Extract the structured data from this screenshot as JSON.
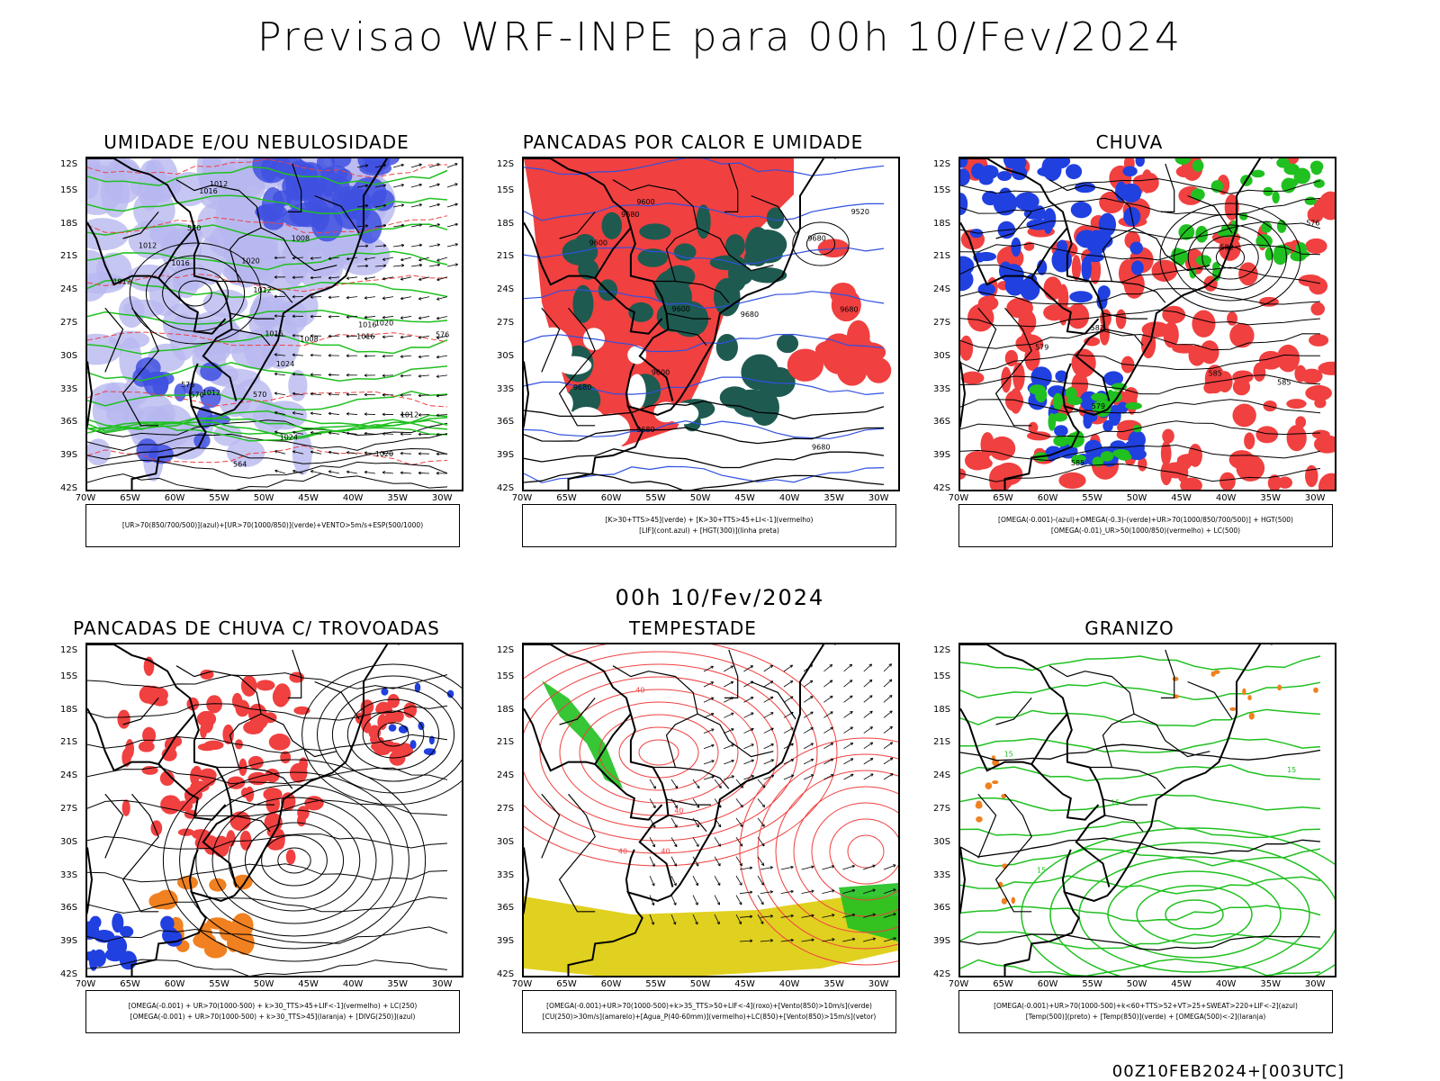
{
  "title": "Previsao WRF-INPE  para 00h 10/Fev/2024",
  "middle_label": "00h 10/Fev/2024",
  "footer": "00Z10FEB2024+[003UTC]",
  "lat_labels": [
    "12S",
    "15S",
    "18S",
    "21S",
    "24S",
    "27S",
    "30S",
    "33S",
    "36S",
    "39S",
    "42S"
  ],
  "lon_labels": [
    "70W",
    "65W",
    "60W",
    "55W",
    "50W",
    "45W",
    "40W",
    "35W",
    "30W"
  ],
  "colors": {
    "blue": "#2040e0",
    "lightblue": "#b8b8f0",
    "green": "#20c020",
    "red": "#f04040",
    "darkgreen": "#1e5a50",
    "orange": "#f08020",
    "yellow": "#e0d020",
    "black": "#000000"
  },
  "panels": [
    {
      "title": "UMIDADE E/OU NEBULOSIDADE",
      "legend": [
        "[UR>70(850/700/500)](azul)+[UR>70(1000/850)](verde)+VENTO>5m/s+ESP(500/1000)"
      ],
      "contour_labels": [
        "1016",
        "1012",
        "1012",
        "1016",
        "1012",
        "1008",
        "1012",
        "1008",
        "1012",
        "1016",
        "1012",
        "1016",
        "1020",
        "1020",
        "1024",
        "1024",
        "1020",
        "1016",
        "576",
        "570",
        "576",
        "570",
        "570",
        "564"
      ]
    },
    {
      "title": "PANCADAS POR CALOR E UMIDADE",
      "legend": [
        "[K>30+TTS>45](verde) + [K>30+TTS>45+LI<-1](vermelho)",
        "[LIF](cont.azul) + [HGT(300)](linha preta)"
      ],
      "contour_labels": [
        "9680",
        "9680",
        "9600",
        "9680",
        "9680",
        "9600",
        "9680",
        "9680",
        "9600",
        "9520",
        "9680",
        "9600"
      ]
    },
    {
      "title": "CHUVA",
      "legend": [
        "[OMEGA(-0.001)-(azul)+OMEGA(-0.3)-(verde)+UR>70(1000/850/700/500)] + HGT(500)",
        "[OMEGA(-0.01)_UR>50(1000/850)(vermelho) + LC(500)"
      ],
      "contour_labels": [
        "585",
        "585",
        "582",
        "579",
        "585",
        "582",
        "579",
        "576"
      ]
    },
    {
      "title": "PANCADAS DE CHUVA C/ TROVOADAS",
      "legend": [
        "[OMEGA(-0.001) + UR>70(1000-500) + k>30_TTS>45+LIF<-1](vermelho) + LC(250)",
        "[OMEGA(-0.001) + UR>70(1000-500) + k>30_TTS>45](laranja) + [DIVG(250)](azul)"
      ],
      "contour_labels": []
    },
    {
      "title": "TEMPESTADE",
      "legend": [
        "[OMEGA(-0.001)+UR>70(1000-500)+k>35_TTS>50+LIF<-4](roxo)+[Vento(850)>10m/s](verde)",
        "[CU(250)>30m/s](amarelo)+[Agua_P(40-60mm)](vermelho)+LC(850)+[Vento(850)>15m/s](vetor)"
      ],
      "contour_labels": [
        "40",
        "40",
        "40",
        "40"
      ]
    },
    {
      "title": "GRANIZO",
      "legend": [
        "[OMEGA(-0.001)+UR>70(1000-500)+k<60+TTS>52+VT>25+SWEAT>220+LIF<-2](azul)",
        "[Temp(500)](preto) + [Temp(850)](verde) + [OMEGA(500)<-2](laranja)"
      ],
      "contour_labels": [
        "15",
        "15",
        "15",
        "15"
      ]
    }
  ]
}
